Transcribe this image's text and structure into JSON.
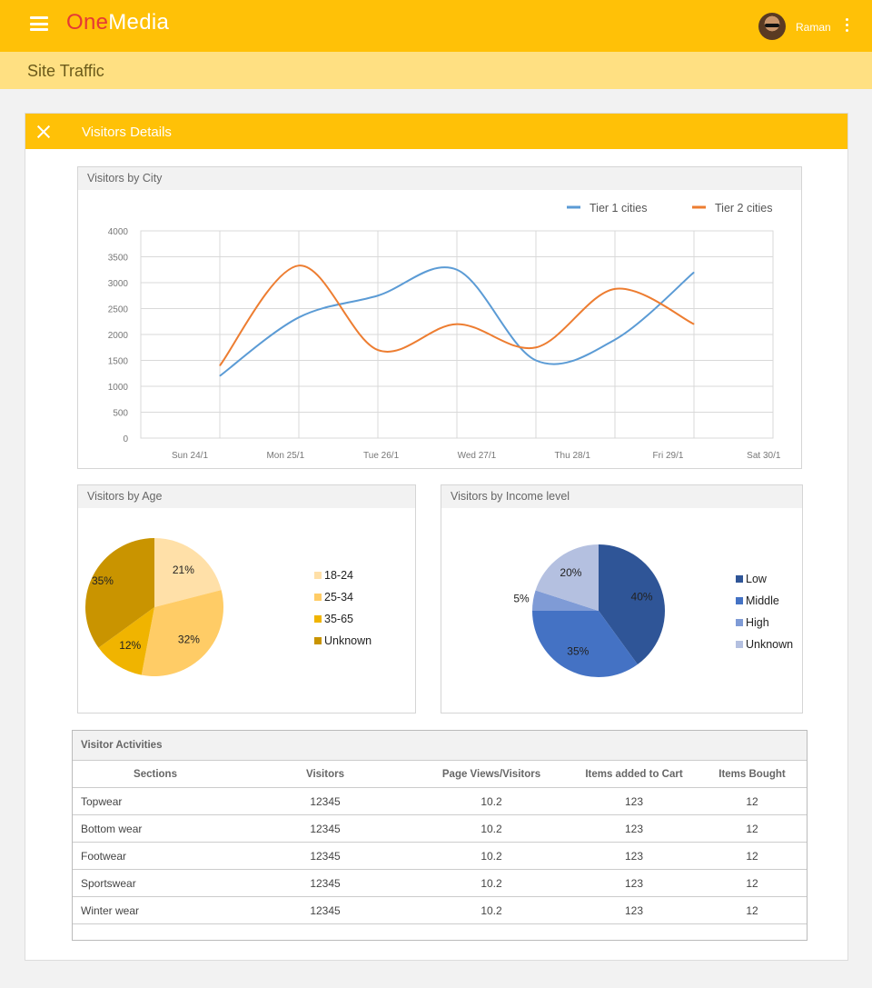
{
  "app": {
    "logo_one": "One",
    "logo_media": "Media",
    "username": "Raman"
  },
  "page": {
    "title": "Site Traffic"
  },
  "card": {
    "title": "Visitors Details"
  },
  "icons": {
    "menu": "hamburger-icon",
    "close": "close-icon",
    "more": "kebab-icon",
    "avatar": "user-avatar"
  },
  "colors": {
    "primary": "#ffc107",
    "subheader": "#ffe082",
    "logo_accent": "#e53935"
  },
  "city_chart": {
    "title": "Visitors  by City",
    "legend": [
      "Tier 1 cities",
      "Tier 2 cities"
    ],
    "y_ticks": [
      "4000",
      "3500",
      "3000",
      "2500",
      "2000",
      "1500",
      "1000",
      "500",
      "0"
    ],
    "x_ticks": [
      "Sun 24/1",
      "Mon 25/1",
      "Tue 26/1",
      "Wed 27/1",
      "Thu 28/1",
      "Fri 29/1",
      "Sat 30/1"
    ]
  },
  "age_chart": {
    "title": "Visitors by Age",
    "labels": [
      "21%",
      "32%",
      "12%",
      "35%"
    ],
    "legend": [
      "18-24",
      "25-34",
      "35-65",
      "Unknown"
    ]
  },
  "income_chart": {
    "title": "Visitors by Income level",
    "labels": [
      "40%",
      "35%",
      "5%",
      "20%"
    ],
    "legend": [
      "Low",
      "Middle",
      "High",
      "Unknown"
    ]
  },
  "chart_data": [
    {
      "type": "line",
      "title": "Visitors  by City",
      "x": [
        "Sun 24/1",
        "Mon 25/1",
        "Tue 26/1",
        "Wed 27/1",
        "Thu 28/1",
        "Fri 29/1",
        "Sat 30/1"
      ],
      "series": [
        {
          "name": "Tier 1 cities",
          "color": "#5b9bd5",
          "values": [
            1200,
            2330,
            2750,
            3250,
            1500,
            1900,
            3200
          ]
        },
        {
          "name": "Tier 2 cities",
          "color": "#ed7d31",
          "values": [
            1400,
            3330,
            1700,
            2200,
            1750,
            2880,
            2200
          ]
        }
      ],
      "ylim": [
        0,
        4000
      ],
      "grid": true,
      "legend_position": "top-right"
    },
    {
      "type": "pie",
      "title": "Visitors by Age",
      "categories": [
        "18-24",
        "25-34",
        "35-65",
        "Unknown"
      ],
      "values": [
        21,
        32,
        12,
        35
      ],
      "colors": [
        "#ffe0a8",
        "#ffcc66",
        "#f0b400",
        "#c99400"
      ]
    },
    {
      "type": "pie",
      "title": "Visitors by Income level",
      "categories": [
        "Low",
        "Middle",
        "High",
        "Unknown"
      ],
      "values": [
        40,
        35,
        5,
        20
      ],
      "colors": [
        "#2f5597",
        "#4472c4",
        "#7f9bd6",
        "#b4c0e0"
      ]
    }
  ],
  "activities": {
    "title": "Visitor Activities",
    "columns": [
      "Sections",
      "Visitors",
      "Page Views/Visitors",
      "Items added to Cart",
      "Items Bought"
    ],
    "rows": [
      [
        "Topwear",
        "12345",
        "10.2",
        "123",
        "12"
      ],
      [
        "Bottom wear",
        "12345",
        "10.2",
        "123",
        "12"
      ],
      [
        "Footwear",
        "12345",
        "10.2",
        "123",
        "12"
      ],
      [
        "Sportswear",
        "12345",
        "10.2",
        "123",
        "12"
      ],
      [
        "Winter wear",
        "12345",
        "10.2",
        "123",
        "12"
      ]
    ]
  }
}
